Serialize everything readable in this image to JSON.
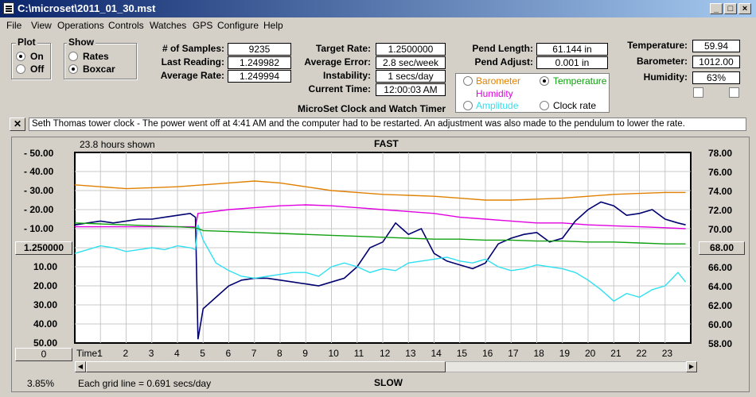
{
  "window": {
    "title": "C:\\microset\\2011_01_30.mst"
  },
  "menu": [
    "File",
    "View",
    "Operations",
    "Controls",
    "Watches",
    "GPS",
    "Configure",
    "Help"
  ],
  "plot_group": {
    "title": "Plot",
    "on": "On",
    "off": "Off",
    "selected": "On"
  },
  "show_group": {
    "title": "Show",
    "rates": "Rates",
    "boxcar": "Boxcar",
    "selected": "Boxcar"
  },
  "stats": {
    "samples_label": "# of Samples:",
    "samples": "9235",
    "last_label": "Last Reading:",
    "last": "1.249982",
    "avg_label": "Average Rate:",
    "avg": "1.249994"
  },
  "rates": {
    "target_label": "Target Rate:",
    "target": "1.2500000",
    "error_label": "Average Error:",
    "error": "2.8 sec/week",
    "instab_label": "Instability:",
    "instab": "1 secs/day",
    "time_label": "Current Time:",
    "time": "12:00:03 AM"
  },
  "pend": {
    "length_label": "Pend Length:",
    "length": "61.144 in",
    "adjust_label": "Pend Adjust:",
    "adjust": "0.001 in"
  },
  "env": {
    "temp_label": "Temperature:",
    "temp": "59.94",
    "baro_label": "Barometer:",
    "baro": "1012.00",
    "hum_label": "Humidity:",
    "hum": "63%"
  },
  "series_select": {
    "barometer": "Barometer",
    "temperature": "Temperature",
    "humidity": "Humidity",
    "amplitude": "Amplitude",
    "clock_rate": "Clock rate",
    "selected": "Temperature"
  },
  "app_caption": "MicroSet Clock and Watch Timer",
  "note": "Seth Thomas tower clock - The power went off at 4:41 AM and the computer had to be restarted. An adjustment was also made to the pendulum to lower the rate.",
  "plot": {
    "hours_shown": "23.8 hours shown",
    "fast_label": "FAST",
    "slow_label": "SLOW",
    "left_value_btn": "1.250000",
    "right_value_btn": "68.00",
    "bottom_left_btn": "0",
    "grid_text": "Each grid line = 0.691 secs/day",
    "percent": "3.85%",
    "time_label": "Time:"
  },
  "chart_data": {
    "type": "line",
    "left_ticks": [
      "- 50.00",
      "- 40.00",
      "- 30.00",
      "- 20.00",
      "- 10.00",
      "10.00",
      "20.00",
      "30.00",
      "40.00",
      "50.00"
    ],
    "right_ticks": [
      "78.00",
      "76.00",
      "74.00",
      "72.00",
      "70.00",
      "68.00",
      "66.00",
      "64.00",
      "62.00",
      "60.00",
      "58.00"
    ],
    "x_ticks": [
      "1",
      "2",
      "3",
      "4",
      "5",
      "6",
      "7",
      "8",
      "9",
      "10",
      "11",
      "12",
      "13",
      "14",
      "15",
      "16",
      "17",
      "18",
      "19",
      "20",
      "21",
      "22",
      "23"
    ],
    "ylim": [
      -50,
      50
    ],
    "xlim": [
      0,
      24
    ],
    "colors": {
      "rate": "#000070",
      "barometer": "#e08000",
      "humidity": "#e000e0",
      "amplitude": "#30e0f0",
      "temperature": "#10a010"
    },
    "series": [
      {
        "key": "barometer",
        "x": [
          0,
          1,
          2,
          3,
          4,
          5,
          6,
          7,
          8,
          9,
          10,
          11,
          12,
          13,
          14,
          15,
          16,
          17,
          18,
          19,
          20,
          21,
          22,
          23,
          23.8
        ],
        "y": [
          -33,
          -32,
          -31,
          -31.5,
          -32,
          -33,
          -34,
          -35,
          -34,
          -32,
          -30,
          -29,
          -28,
          -27.5,
          -27,
          -26,
          -25,
          -25,
          -25.5,
          -26,
          -27,
          -28,
          -28.5,
          -29,
          -29
        ]
      },
      {
        "key": "humidity",
        "x": [
          0,
          1,
          2,
          3,
          4,
          4.7,
          4.8,
          6,
          7,
          8,
          9,
          10,
          11,
          12,
          13,
          14,
          15,
          16,
          17,
          18,
          19,
          20,
          21,
          22,
          23,
          23.8
        ],
        "y": [
          -11,
          -11,
          -11,
          -11,
          -11,
          -11,
          -18,
          -20,
          -21,
          -22,
          -22.5,
          -22,
          -21,
          -20,
          -19,
          -18,
          -16,
          -15,
          -14,
          -13,
          -13,
          -12,
          -11.5,
          -11,
          -10.5,
          -10
        ]
      },
      {
        "key": "rate",
        "x": [
          0,
          0.5,
          1,
          1.5,
          2,
          2.5,
          3,
          3.5,
          4,
          4.5,
          4.7,
          4.8,
          5,
          5.5,
          6,
          6.5,
          7,
          7.5,
          8,
          8.5,
          9,
          9.5,
          10,
          10.5,
          11,
          11.5,
          12,
          12.5,
          13,
          13.5,
          14,
          14.5,
          15,
          15.5,
          16,
          16.5,
          17,
          17.5,
          18,
          18.5,
          19,
          19.5,
          20,
          20.5,
          21,
          21.5,
          22,
          22.5,
          23,
          23.5,
          23.8
        ],
        "y": [
          -12,
          -13,
          -14,
          -13,
          -14,
          -15,
          -15,
          -16,
          -17,
          -18,
          -16,
          48,
          32,
          26,
          20,
          17,
          16,
          16,
          17,
          18,
          19,
          20,
          18,
          16,
          10,
          0,
          -3,
          -13,
          -7,
          -10,
          3,
          7,
          9,
          11,
          8,
          -2,
          -5,
          -7,
          -8,
          -3,
          -5,
          -14,
          -20,
          -24,
          -22,
          -17,
          -18,
          -20,
          -15,
          -13,
          -12
        ]
      },
      {
        "key": "amplitude",
        "x": [
          0,
          0.5,
          1,
          1.5,
          2,
          2.5,
          3,
          3.5,
          4,
          4.5,
          4.7,
          4.8,
          5,
          5.5,
          6,
          6.5,
          7,
          7.5,
          8,
          8.5,
          9,
          9.5,
          10,
          10.5,
          11,
          11.5,
          12,
          12.5,
          13,
          13.5,
          14,
          14.5,
          15,
          15.5,
          16,
          16.5,
          17,
          17.5,
          18,
          18.5,
          19,
          19.5,
          20,
          20.5,
          21,
          21.5,
          22,
          22.5,
          23,
          23.5,
          23.8
        ],
        "y": [
          3,
          1,
          -1,
          0,
          2,
          1,
          0,
          1,
          -1,
          0,
          1,
          -12,
          -4,
          8,
          12,
          15,
          16,
          15,
          14,
          13,
          13,
          15,
          10,
          8,
          10,
          13,
          11,
          12,
          8,
          7,
          6,
          5,
          7,
          8,
          6,
          10,
          12,
          11,
          9,
          10,
          11,
          13,
          17,
          22,
          28,
          24,
          26,
          22,
          20,
          13,
          18
        ]
      },
      {
        "key": "temperature",
        "x": [
          0,
          1,
          2,
          3,
          4,
          4.7,
          4.8,
          5,
          6,
          7,
          8,
          9,
          10,
          11,
          12,
          13,
          14,
          15,
          16,
          17,
          18,
          19,
          20,
          21,
          22,
          23,
          23.8
        ],
        "y": [
          -13,
          -12.5,
          -12,
          -11.5,
          -11,
          -10.5,
          -10,
          -9,
          -8.5,
          -8,
          -7.5,
          -7,
          -6.5,
          -6,
          -5.5,
          -5,
          -4.5,
          -4.5,
          -4,
          -4,
          -3.5,
          -3.5,
          -3,
          -3,
          -2.5,
          -2,
          -2
        ]
      }
    ]
  }
}
